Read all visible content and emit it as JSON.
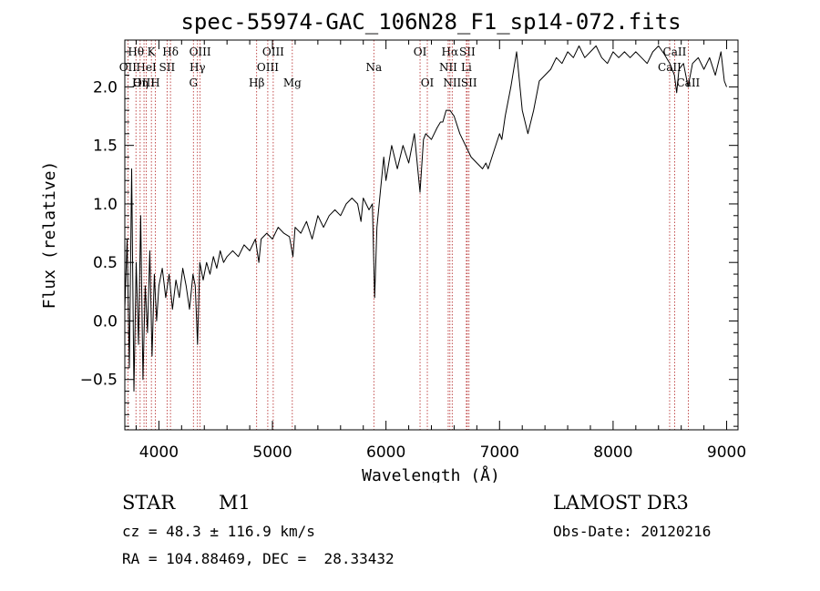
{
  "chart_data": {
    "type": "line",
    "title": "spec-55974-GAC_106N28_F1_sp14-072.fits",
    "xlabel": "Wavelength (Å)",
    "ylabel": "Flux (relative)",
    "xlim": [
      3700,
      9100
    ],
    "ylim": [
      -0.93,
      2.4
    ],
    "xticks": [
      4000,
      5000,
      6000,
      7000,
      8000,
      9000
    ],
    "yticks": [
      -0.5,
      0.0,
      0.5,
      1.0,
      1.5,
      2.0
    ],
    "xtick_labels": [
      "4000",
      "5000",
      "6000",
      "7000",
      "8000",
      "9000"
    ],
    "ytick_labels": [
      "−0.5",
      "0.0",
      "0.5",
      "1.0",
      "1.5",
      "2.0"
    ],
    "series": [
      {
        "name": "spectrum",
        "x": [
          3700,
          3720,
          3740,
          3760,
          3780,
          3800,
          3820,
          3840,
          3860,
          3880,
          3900,
          3920,
          3940,
          3960,
          3980,
          4000,
          4030,
          4060,
          4090,
          4120,
          4150,
          4180,
          4210,
          4240,
          4270,
          4300,
          4320,
          4340,
          4360,
          4390,
          4420,
          4450,
          4480,
          4510,
          4540,
          4570,
          4600,
          4650,
          4700,
          4750,
          4800,
          4850,
          4880,
          4900,
          4950,
          5000,
          5050,
          5100,
          5150,
          5180,
          5200,
          5250,
          5300,
          5350,
          5400,
          5450,
          5500,
          5550,
          5600,
          5650,
          5700,
          5750,
          5780,
          5800,
          5850,
          5880,
          5900,
          5920,
          5950,
          5980,
          6000,
          6050,
          6100,
          6150,
          6200,
          6250,
          6280,
          6300,
          6330,
          6350,
          6400,
          6450,
          6480,
          6500,
          6530,
          6563,
          6600,
          6650,
          6700,
          6750,
          6800,
          6850,
          6880,
          6900,
          6950,
          7000,
          7020,
          7050,
          7100,
          7150,
          7200,
          7250,
          7300,
          7350,
          7400,
          7450,
          7500,
          7550,
          7600,
          7650,
          7700,
          7750,
          7800,
          7850,
          7900,
          7950,
          8000,
          8050,
          8100,
          8150,
          8200,
          8250,
          8300,
          8350,
          8400,
          8450,
          8500,
          8540,
          8560,
          8580,
          8620,
          8660,
          8700,
          8750,
          8800,
          8850,
          8900,
          8950,
          8980,
          9000
        ],
        "values": [
          0.1,
          0.7,
          -0.4,
          1.3,
          -0.6,
          0.5,
          -0.2,
          0.9,
          -0.5,
          0.3,
          -0.1,
          0.6,
          -0.3,
          0.4,
          0.0,
          0.3,
          0.45,
          0.2,
          0.4,
          0.1,
          0.35,
          0.2,
          0.45,
          0.3,
          0.1,
          0.4,
          0.3,
          -0.2,
          0.5,
          0.35,
          0.5,
          0.4,
          0.55,
          0.45,
          0.6,
          0.5,
          0.55,
          0.6,
          0.55,
          0.65,
          0.6,
          0.7,
          0.5,
          0.7,
          0.75,
          0.7,
          0.8,
          0.75,
          0.72,
          0.55,
          0.8,
          0.75,
          0.85,
          0.7,
          0.9,
          0.8,
          0.9,
          0.95,
          0.9,
          1.0,
          1.05,
          1.0,
          0.85,
          1.05,
          0.95,
          1.0,
          0.2,
          0.8,
          1.1,
          1.4,
          1.2,
          1.5,
          1.3,
          1.5,
          1.35,
          1.6,
          1.3,
          1.1,
          1.55,
          1.6,
          1.55,
          1.65,
          1.7,
          1.7,
          1.8,
          1.8,
          1.75,
          1.6,
          1.5,
          1.4,
          1.35,
          1.3,
          1.35,
          1.3,
          1.45,
          1.6,
          1.55,
          1.75,
          2.0,
          2.3,
          1.8,
          1.6,
          1.8,
          2.05,
          2.1,
          2.15,
          2.25,
          2.2,
          2.3,
          2.25,
          2.35,
          2.25,
          2.3,
          2.35,
          2.25,
          2.2,
          2.3,
          2.25,
          2.3,
          2.25,
          2.3,
          2.25,
          2.2,
          2.3,
          2.35,
          2.28,
          2.2,
          2.1,
          1.95,
          2.15,
          2.2,
          2.0,
          2.2,
          2.25,
          2.15,
          2.25,
          2.1,
          2.3,
          2.05,
          2.0
        ]
      }
    ],
    "line_markers": [
      {
        "label": "Hθ",
        "wl": 3798,
        "row": 0
      },
      {
        "label": "K",
        "wl": 3934,
        "row": 0
      },
      {
        "label": "Hδ",
        "wl": 4102,
        "row": 0
      },
      {
        "label": "OIII",
        "wl": 4363,
        "row": 0
      },
      {
        "label": "OIII",
        "wl": 5007,
        "row": 0
      },
      {
        "label": "OI",
        "wl": 6300,
        "row": 0
      },
      {
        "label": "Hα",
        "wl": 6563,
        "row": 0
      },
      {
        "label": "SII",
        "wl": 6716,
        "row": 0
      },
      {
        "label": "CaII",
        "wl": 8542,
        "row": 0
      },
      {
        "label": "OII",
        "wl": 3727,
        "row": 1
      },
      {
        "label": "HeI",
        "wl": 3889,
        "row": 1
      },
      {
        "label": "SII",
        "wl": 4072,
        "row": 1
      },
      {
        "label": "Hγ",
        "wl": 4340,
        "row": 1
      },
      {
        "label": "OIII",
        "wl": 4959,
        "row": 1
      },
      {
        "label": "Na",
        "wl": 5893,
        "row": 1
      },
      {
        "label": "NII",
        "wl": 6548,
        "row": 1
      },
      {
        "label": "Li",
        "wl": 6708,
        "row": 1
      },
      {
        "label": "CaII",
        "wl": 8498,
        "row": 1
      },
      {
        "label": "OIII",
        "wl": 3869,
        "row": 2
      },
      {
        "label": "Hη",
        "wl": 3835,
        "row": 2
      },
      {
        "label": "H",
        "wl": 3968,
        "row": 2
      },
      {
        "label": "G",
        "wl": 4304,
        "row": 2
      },
      {
        "label": "Hβ",
        "wl": 4861,
        "row": 2
      },
      {
        "label": "Mg",
        "wl": 5175,
        "row": 2
      },
      {
        "label": "OI",
        "wl": 6364,
        "row": 2
      },
      {
        "label": "NII",
        "wl": 6583,
        "row": 2
      },
      {
        "label": "SII",
        "wl": 6731,
        "row": 2
      },
      {
        "label": "CaII",
        "wl": 8662,
        "row": 2
      }
    ]
  },
  "info": {
    "object_class": "STAR",
    "subclass": "M1",
    "survey": "LAMOST DR3",
    "redshift": "cz = 48.3 ± 116.9 km/s",
    "obs_date": "Obs-Date: 20120216",
    "coords": "RA = 104.88469, DEC =  28.33432"
  }
}
